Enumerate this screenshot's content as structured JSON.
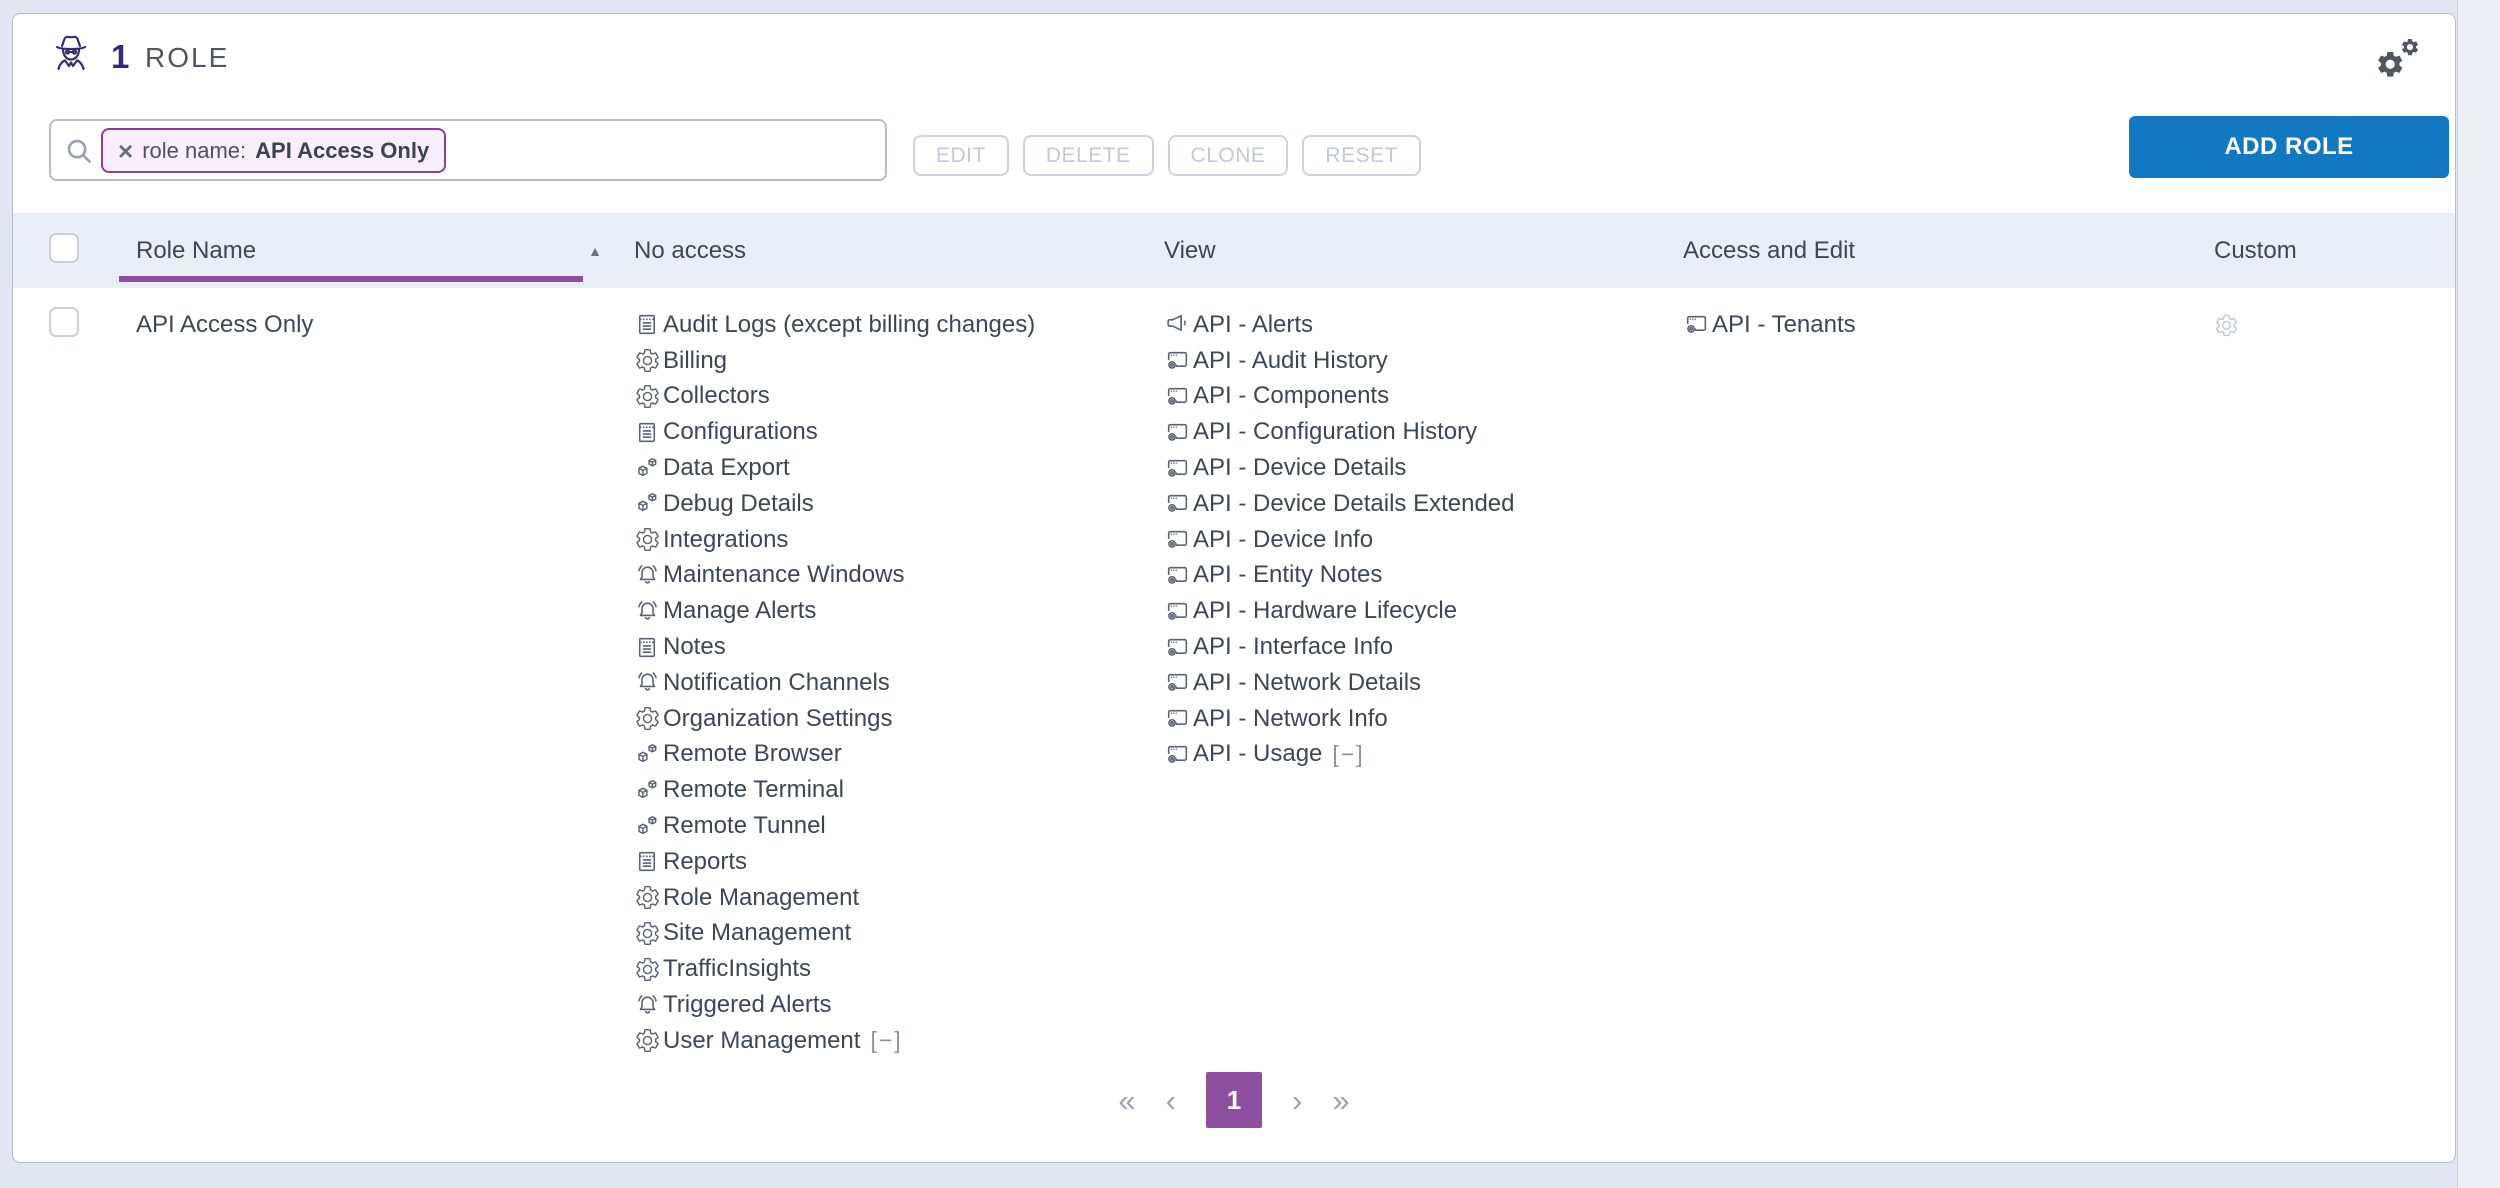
{
  "header": {
    "count": "1",
    "title": "ROLE"
  },
  "toolbar": {
    "search": {
      "chip_remove": "×",
      "chip_prefix": "role name:",
      "chip_value": "API Access Only"
    },
    "buttons": [
      "EDIT",
      "DELETE",
      "CLONE",
      "RESET"
    ],
    "add_button": "ADD ROLE"
  },
  "table": {
    "columns": [
      "Role Name",
      "No access",
      "View",
      "Access and Edit",
      "Custom"
    ],
    "sort": {
      "column": "Role Name",
      "direction": "asc",
      "icon": "▲"
    },
    "row": {
      "role_name": "API Access Only",
      "no_access": [
        {
          "icon": "report",
          "label": "Audit Logs (except billing changes)"
        },
        {
          "icon": "gear",
          "label": "Billing"
        },
        {
          "icon": "gear",
          "label": "Collectors"
        },
        {
          "icon": "report",
          "label": "Configurations"
        },
        {
          "icon": "cubes",
          "label": "Data Export"
        },
        {
          "icon": "cubes",
          "label": "Debug Details"
        },
        {
          "icon": "gear",
          "label": "Integrations"
        },
        {
          "icon": "bell",
          "label": "Maintenance Windows"
        },
        {
          "icon": "bell",
          "label": "Manage Alerts"
        },
        {
          "icon": "report",
          "label": "Notes"
        },
        {
          "icon": "bell",
          "label": "Notification Channels"
        },
        {
          "icon": "gear",
          "label": "Organization Settings"
        },
        {
          "icon": "cubes",
          "label": "Remote Browser"
        },
        {
          "icon": "cubes",
          "label": "Remote Terminal"
        },
        {
          "icon": "cubes",
          "label": "Remote Tunnel"
        },
        {
          "icon": "report",
          "label": "Reports"
        },
        {
          "icon": "gear",
          "label": "Role Management"
        },
        {
          "icon": "gear",
          "label": "Site Management"
        },
        {
          "icon": "gear",
          "label": "TrafficInsights"
        },
        {
          "icon": "bell",
          "label": "Triggered Alerts"
        },
        {
          "icon": "gear",
          "label": "User Management",
          "suffix": "[−]"
        }
      ],
      "view": [
        {
          "icon": "megaphone",
          "label": "API - Alerts"
        },
        {
          "icon": "window",
          "label": "API - Audit History"
        },
        {
          "icon": "window",
          "label": "API - Components"
        },
        {
          "icon": "window",
          "label": "API - Configuration History"
        },
        {
          "icon": "window",
          "label": "API - Device Details"
        },
        {
          "icon": "window",
          "label": "API - Device Details Extended"
        },
        {
          "icon": "window",
          "label": "API - Device Info"
        },
        {
          "icon": "window",
          "label": "API - Entity Notes"
        },
        {
          "icon": "window",
          "label": "API - Hardware Lifecycle"
        },
        {
          "icon": "window",
          "label": "API - Interface Info"
        },
        {
          "icon": "window",
          "label": "API - Network Details"
        },
        {
          "icon": "window",
          "label": "API - Network Info"
        },
        {
          "icon": "window",
          "label": "API - Usage",
          "suffix": "[−]"
        }
      ],
      "access_and_edit": [
        {
          "icon": "window",
          "label": "API - Tenants"
        }
      ],
      "custom_icon": "gear"
    }
  },
  "pagination": {
    "first": "«",
    "prev": "‹",
    "page": "1",
    "next": "›",
    "last": "»"
  },
  "colors": {
    "accent_blue": "#1278c1",
    "accent_purple": "#8f4fa0",
    "chip_bg": "#f9eefb",
    "chip_border": "#8c3d9c",
    "header_bg": "#eaeef6",
    "page_bg": "#e2e6f0"
  }
}
